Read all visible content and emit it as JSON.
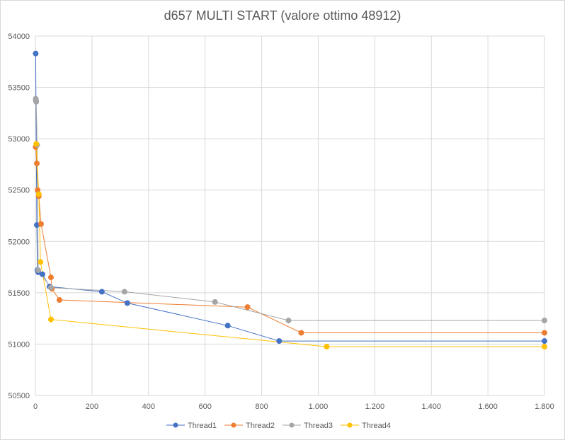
{
  "chart_data": {
    "type": "scatter",
    "title": "d657 MULTI START (valore ottimo 48912)",
    "xlabel": "",
    "ylabel": "",
    "xlim": [
      0,
      1800
    ],
    "ylim": [
      50500,
      54000
    ],
    "x_ticks": [
      0,
      200,
      400,
      600,
      800,
      1000,
      1200,
      1400,
      1600,
      1800
    ],
    "x_tick_labels": [
      "0",
      "200",
      "400",
      "600",
      "800",
      "1.000",
      "1.200",
      "1.400",
      "1.600",
      "1.800"
    ],
    "y_ticks": [
      50500,
      51000,
      51500,
      52000,
      52500,
      53000,
      53500,
      54000
    ],
    "y_tick_labels": [
      "50500",
      "51000",
      "51500",
      "52000",
      "52500",
      "53000",
      "53500",
      "54000"
    ],
    "grid": true,
    "legend_position": "bottom",
    "series": [
      {
        "name": "Thread1",
        "color": "#4472C4",
        "x": [
          1,
          2,
          5,
          7,
          10,
          25,
          50,
          235,
          325,
          680,
          862,
          1800
        ],
        "y": [
          53830,
          53370,
          52160,
          51720,
          51700,
          51680,
          51560,
          51510,
          51400,
          51180,
          51030,
          51030
        ]
      },
      {
        "name": "Thread2",
        "color": "#ED7D31",
        "x": [
          1,
          5,
          8,
          12,
          20,
          55,
          58,
          85,
          750,
          940,
          1800
        ],
        "y": [
          52920,
          52760,
          52500,
          52440,
          52170,
          51650,
          51540,
          51430,
          51360,
          51110,
          51110
        ]
      },
      {
        "name": "Thread3",
        "color": "#A5A5A5",
        "x": [
          1,
          3,
          6,
          10,
          55,
          315,
          635,
          895,
          1800
        ],
        "y": [
          53390,
          53360,
          52940,
          51720,
          51550,
          51510,
          51410,
          51230,
          51230
        ]
      },
      {
        "name": "Thread4",
        "color": "#FFC000",
        "x": [
          3,
          12,
          18,
          55,
          1030,
          1800
        ],
        "y": [
          52950,
          52460,
          51800,
          51240,
          50975,
          50975
        ]
      }
    ]
  }
}
